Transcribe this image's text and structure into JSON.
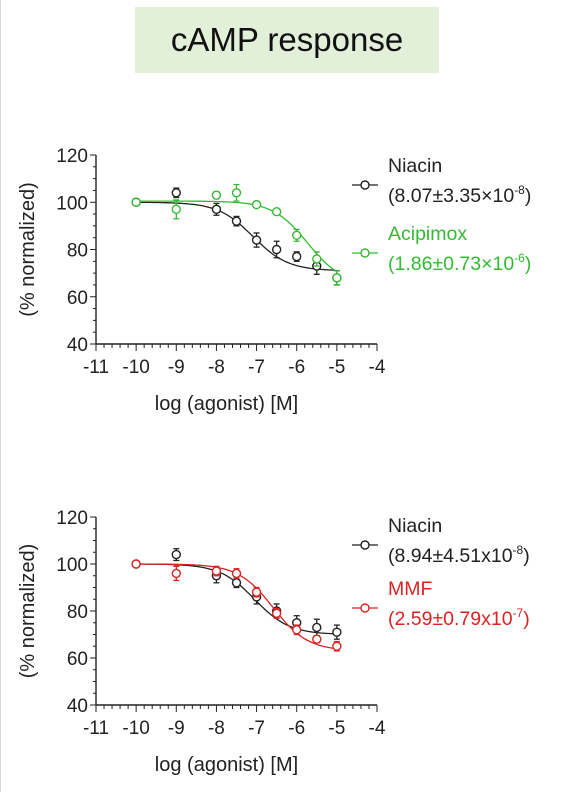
{
  "page_title": "cAMP response",
  "colors": {
    "black": "#222222",
    "green": "#33bb33",
    "red": "#dd2222",
    "title_bg": "#e2efd9"
  },
  "chart_data": [
    {
      "type": "scatter",
      "xlabel": "log (agonist) [M]",
      "ylabel": "(% normalized)",
      "xlim": [
        -11,
        -4
      ],
      "ylim": [
        40,
        120
      ],
      "xticks": [
        -11,
        -10,
        -9,
        -8,
        -7,
        -6,
        -5,
        -4
      ],
      "yticks": [
        40,
        60,
        80,
        100,
        120
      ],
      "xtick_labels": [
        "-11",
        "-10",
        "-9",
        "-8",
        "-7",
        "-6",
        "-5",
        "-4"
      ],
      "ytick_labels": [
        "40",
        "60",
        "80",
        "100",
        "120"
      ],
      "legend_position": "right",
      "series": [
        {
          "name": "Niacin",
          "value_label": "(8.07±3.35×10",
          "exponent": "-8",
          "closing": ")",
          "color": "#222222",
          "fit": {
            "top": 100,
            "bottom": 71,
            "log_ec50": -7.09
          },
          "points": [
            {
              "x": -10,
              "y": 100,
              "err": 0
            },
            {
              "x": -9,
              "y": 104,
              "err": 2
            },
            {
              "x": -8,
              "y": 97,
              "err": 2.5
            },
            {
              "x": -7.5,
              "y": 92,
              "err": 2
            },
            {
              "x": -7,
              "y": 84,
              "err": 3
            },
            {
              "x": -6.5,
              "y": 80,
              "err": 3.5
            },
            {
              "x": -6,
              "y": 77,
              "err": 2
            },
            {
              "x": -5.5,
              "y": 73,
              "err": 3.5
            },
            {
              "x": -5,
              "y": 68,
              "err": 3
            }
          ]
        },
        {
          "name": "Acipimox",
          "value_label": "(1.86±0.73×10",
          "exponent": "-6",
          "closing": ")",
          "color": "#33bb33",
          "fit": {
            "top": 100.5,
            "bottom": 65,
            "log_ec50": -5.73
          },
          "points": [
            {
              "x": -10,
              "y": 100,
              "err": 0
            },
            {
              "x": -9,
              "y": 97,
              "err": 4
            },
            {
              "x": -8,
              "y": 103,
              "err": 1.5
            },
            {
              "x": -7.5,
              "y": 104,
              "err": 3.5
            },
            {
              "x": -7,
              "y": 99,
              "err": 1
            },
            {
              "x": -6.5,
              "y": 96,
              "err": 1
            },
            {
              "x": -6,
              "y": 86,
              "err": 2.5
            },
            {
              "x": -5.5,
              "y": 76,
              "err": 3
            },
            {
              "x": -5,
              "y": 68,
              "err": 3
            }
          ]
        }
      ]
    },
    {
      "type": "scatter",
      "xlabel": "log (agonist) [M]",
      "ylabel": "(% normalized)",
      "xlim": [
        -11,
        -4
      ],
      "ylim": [
        40,
        120
      ],
      "xticks": [
        -11,
        -10,
        -9,
        -8,
        -7,
        -6,
        -5,
        -4
      ],
      "yticks": [
        40,
        60,
        80,
        100,
        120
      ],
      "xtick_labels": [
        "-11",
        "-10",
        "-9",
        "-8",
        "-7",
        "-6",
        "-5",
        "-4"
      ],
      "ytick_labels": [
        "40",
        "60",
        "80",
        "100",
        "120"
      ],
      "legend_position": "right",
      "series": [
        {
          "name": "Niacin",
          "value_label": "(8.94±4.51x10",
          "exponent": "-8",
          "closing": ")",
          "color": "#222222",
          "fit": {
            "top": 100,
            "bottom": 70,
            "log_ec50": -7.05
          },
          "points": [
            {
              "x": -10,
              "y": 100,
              "err": 0
            },
            {
              "x": -9,
              "y": 104,
              "err": 2.5
            },
            {
              "x": -8,
              "y": 95,
              "err": 3
            },
            {
              "x": -7.5,
              "y": 92,
              "err": 2
            },
            {
              "x": -7,
              "y": 86,
              "err": 3
            },
            {
              "x": -6.5,
              "y": 80,
              "err": 3
            },
            {
              "x": -6,
              "y": 75,
              "err": 3
            },
            {
              "x": -5.5,
              "y": 73,
              "err": 3.5
            },
            {
              "x": -5,
              "y": 71,
              "err": 3
            }
          ]
        },
        {
          "name": "MMF",
          "value_label": "(2.59±0.79x10",
          "exponent": "-7",
          "closing": ")",
          "color": "#dd2222",
          "fit": {
            "top": 100,
            "bottom": 63,
            "log_ec50": -6.59
          },
          "points": [
            {
              "x": -10,
              "y": 100,
              "err": 0
            },
            {
              "x": -9,
              "y": 96,
              "err": 3
            },
            {
              "x": -8,
              "y": 97,
              "err": 2
            },
            {
              "x": -7.5,
              "y": 96,
              "err": 2
            },
            {
              "x": -7,
              "y": 88,
              "err": 2
            },
            {
              "x": -6.5,
              "y": 79,
              "err": 2
            },
            {
              "x": -6,
              "y": 72,
              "err": 2
            },
            {
              "x": -5.5,
              "y": 68,
              "err": 1.5
            },
            {
              "x": -5,
              "y": 65,
              "err": 2
            }
          ]
        }
      ]
    }
  ]
}
